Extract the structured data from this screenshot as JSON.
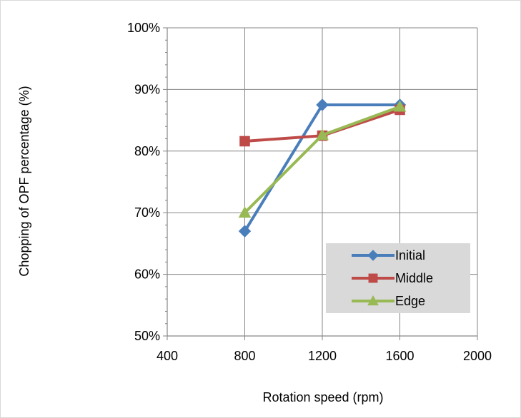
{
  "chart_data": {
    "type": "line",
    "xlabel": "Rotation speed (rpm)",
    "ylabel": "Chopping of OPF percentage (%)",
    "xlim": [
      400,
      2000
    ],
    "ylim": [
      50,
      100
    ],
    "x_ticks": [
      "400",
      "800",
      "1200",
      "1600",
      "2000"
    ],
    "y_ticks": [
      "50%",
      "60%",
      "70%",
      "80%",
      "90%",
      "100%"
    ],
    "grid": true,
    "legend_position": "bottom-right",
    "series": [
      {
        "name": "Initial",
        "color": "#4A7EBB",
        "marker": "diamond",
        "x": [
          800,
          1200,
          1600
        ],
        "y": [
          67.0,
          87.5,
          87.5
        ]
      },
      {
        "name": "Middle",
        "color": "#BE4B48",
        "marker": "square",
        "x": [
          800,
          1200,
          1600
        ],
        "y": [
          81.6,
          82.5,
          86.7
        ]
      },
      {
        "name": "Edge",
        "color": "#98B954",
        "marker": "triangle",
        "x": [
          800,
          1200,
          1600
        ],
        "y": [
          70.0,
          82.6,
          87.2
        ]
      }
    ]
  }
}
